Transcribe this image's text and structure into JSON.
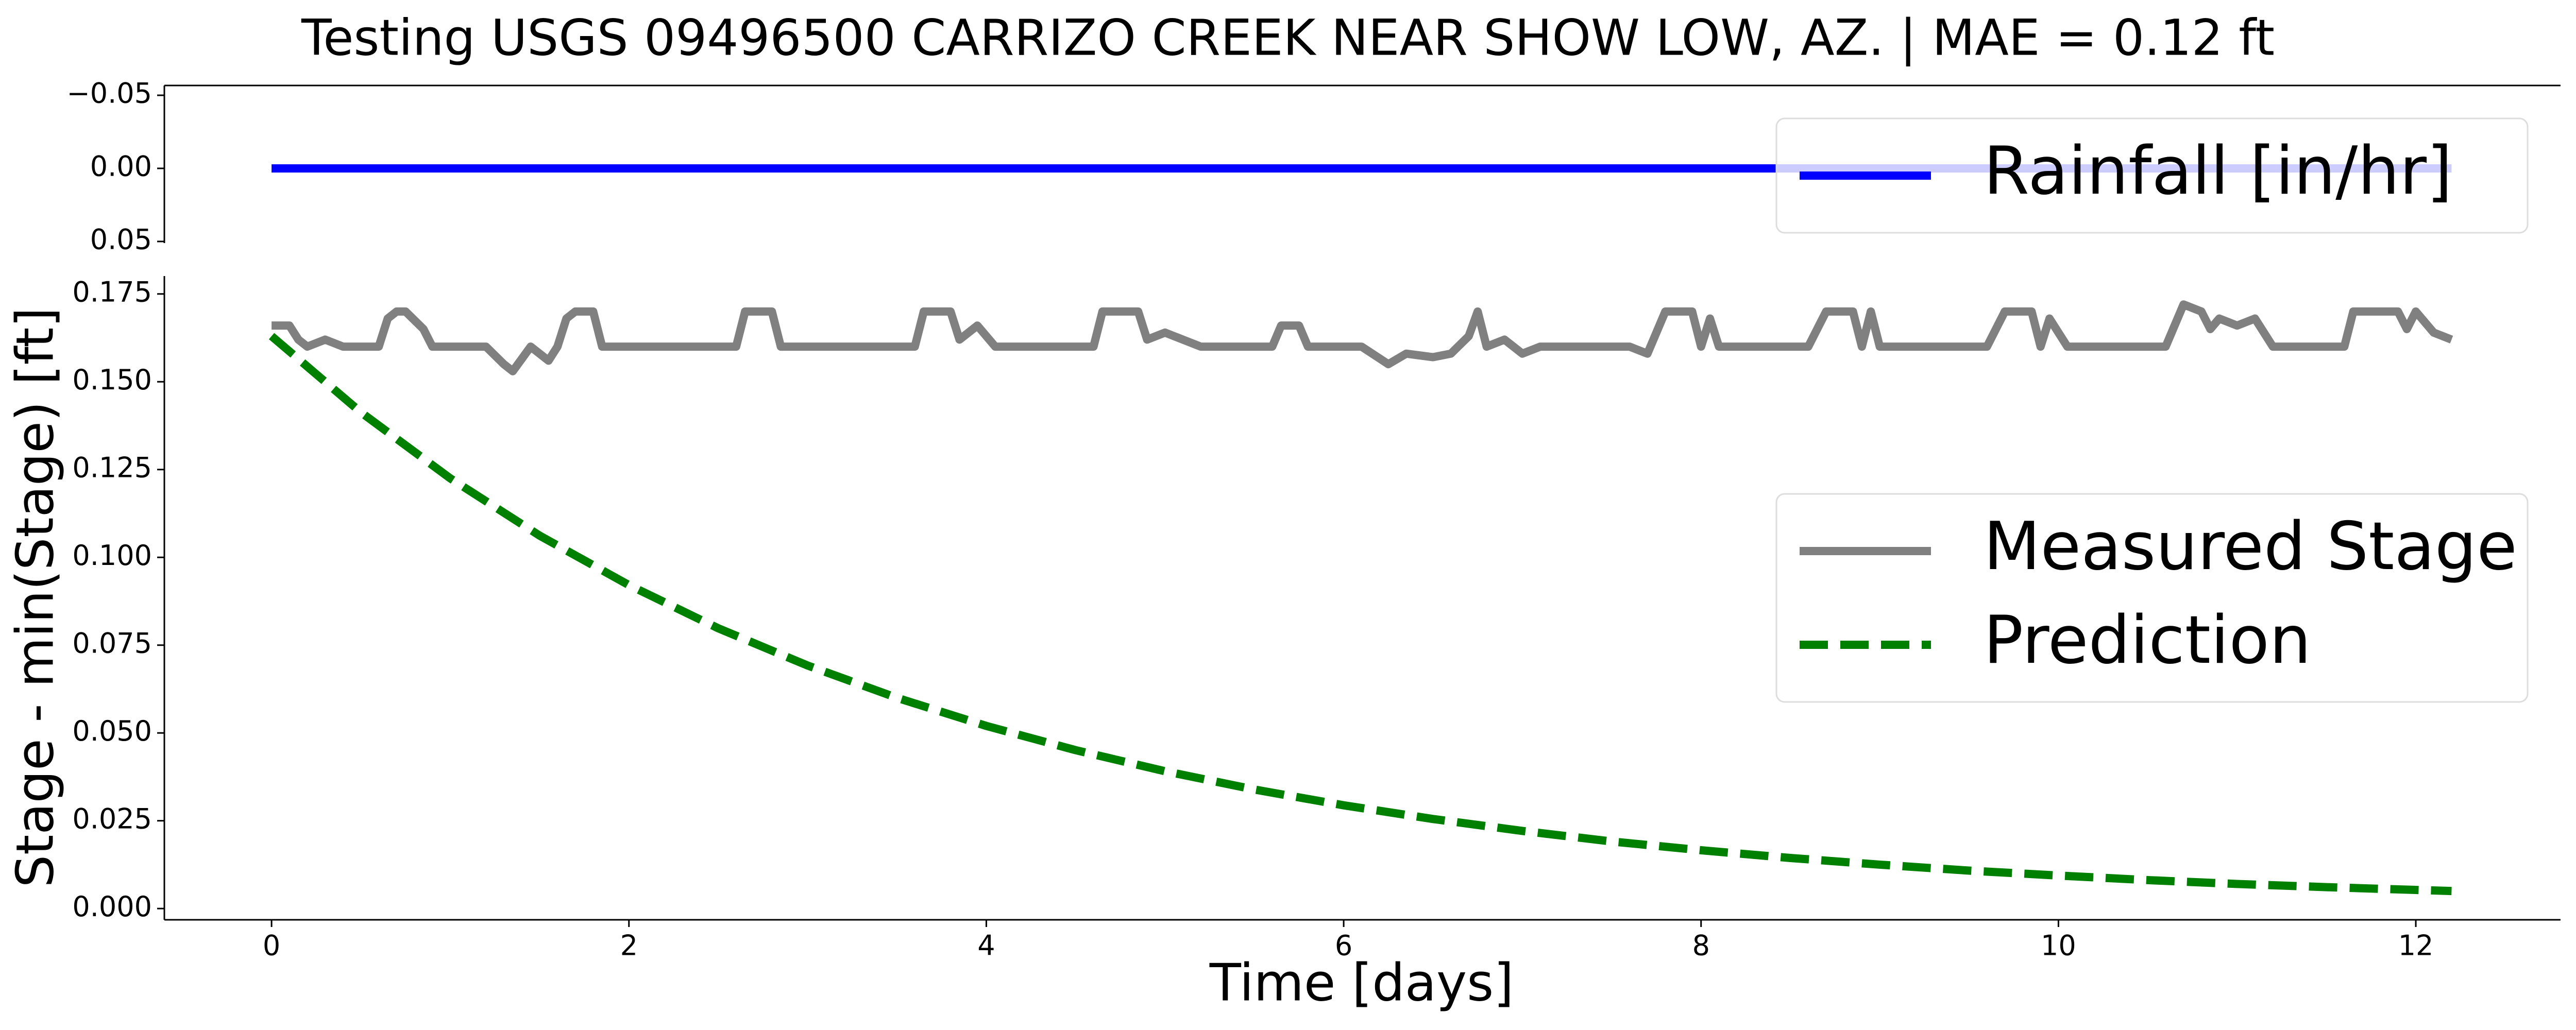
{
  "chart_data": [
    {
      "type": "line",
      "title": "Testing USGS 09496500 CARRIZO CREEK NEAR SHOW LOW, AZ. | MAE = 0.12 ft",
      "xlim": [
        -0.6,
        12.81
      ],
      "ylim": [
        0.0511,
        -0.0567
      ],
      "yticks": [
        {
          "value": -0.05,
          "label": "−0.05"
        },
        {
          "value": 0,
          "label": "0.00"
        },
        {
          "value": 0.05,
          "label": "0.05"
        }
      ],
      "legend": "upper right",
      "series": [
        {
          "name": "Rainfall [in/hr]",
          "color": "#0000ff",
          "linestyle": "solid",
          "x": [
            0,
            12.2
          ],
          "values": [
            0,
            0
          ]
        }
      ]
    },
    {
      "type": "line",
      "xlabel": "Time [days]",
      "ylabel": "Stage - min(Stage) [ft]",
      "xlim": [
        -0.6,
        12.81
      ],
      "xticks": [
        0,
        2,
        4,
        6,
        8,
        10,
        12
      ],
      "ylim": [
        -0.0032,
        0.1801
      ],
      "yticks": [
        {
          "value": 0,
          "label": "0.000"
        },
        {
          "value": 0.025,
          "label": "0.025"
        },
        {
          "value": 0.05,
          "label": "0.050"
        },
        {
          "value": 0.075,
          "label": "0.075"
        },
        {
          "value": 0.1,
          "label": "0.100"
        },
        {
          "value": 0.125,
          "label": "0.125"
        },
        {
          "value": 0.15,
          "label": "0.150"
        },
        {
          "value": 0.175,
          "label": "0.175"
        }
      ],
      "legend": "center right",
      "series": [
        {
          "name": "Measured Stage",
          "color": "#808080",
          "linestyle": "solid",
          "x": [
            0,
            0.1,
            0.15,
            0.2,
            0.3,
            0.4,
            0.6,
            0.65,
            0.7,
            0.75,
            0.85,
            0.9,
            1.2,
            1.3,
            1.35,
            1.45,
            1.55,
            1.6,
            1.65,
            1.7,
            1.8,
            1.85,
            2.6,
            2.65,
            2.8,
            2.85,
            3.6,
            3.65,
            3.8,
            3.85,
            3.95,
            4.05,
            4.6,
            4.65,
            4.85,
            4.9,
            5.0,
            5.1,
            5.2,
            5.6,
            5.65,
            5.75,
            5.8,
            6.1,
            6.25,
            6.35,
            6.5,
            6.6,
            6.7,
            6.75,
            6.8,
            6.9,
            7.0,
            7.1,
            7.6,
            7.7,
            7.8,
            7.95,
            8.0,
            8.05,
            8.1,
            8.6,
            8.7,
            8.85,
            8.9,
            8.95,
            9.0,
            9.6,
            9.7,
            9.85,
            9.9,
            9.95,
            10.05,
            10.6,
            10.7,
            10.8,
            10.85,
            10.9,
            11.0,
            11.1,
            11.2,
            11.6,
            11.65,
            11.9,
            11.95,
            12.0,
            12.1,
            12.2
          ],
          "values": [
            0.166,
            0.166,
            0.162,
            0.16,
            0.162,
            0.16,
            0.16,
            0.168,
            0.17,
            0.17,
            0.165,
            0.16,
            0.16,
            0.155,
            0.153,
            0.16,
            0.156,
            0.16,
            0.168,
            0.17,
            0.17,
            0.16,
            0.16,
            0.17,
            0.17,
            0.16,
            0.16,
            0.17,
            0.17,
            0.162,
            0.166,
            0.16,
            0.16,
            0.17,
            0.17,
            0.162,
            0.164,
            0.162,
            0.16,
            0.16,
            0.166,
            0.166,
            0.16,
            0.16,
            0.155,
            0.158,
            0.157,
            0.158,
            0.163,
            0.17,
            0.16,
            0.162,
            0.158,
            0.16,
            0.16,
            0.158,
            0.17,
            0.17,
            0.16,
            0.168,
            0.16,
            0.16,
            0.17,
            0.17,
            0.16,
            0.17,
            0.16,
            0.16,
            0.17,
            0.17,
            0.16,
            0.168,
            0.16,
            0.16,
            0.172,
            0.17,
            0.165,
            0.168,
            0.166,
            0.168,
            0.16,
            0.16,
            0.17,
            0.17,
            0.165,
            0.17,
            0.164,
            0.162
          ]
        },
        {
          "name": "Prediction",
          "color": "#008000",
          "linestyle": "dashed",
          "x": [
            0,
            0.5,
            1,
            1.5,
            2,
            2.5,
            3,
            3.5,
            4,
            4.5,
            5,
            5.5,
            6,
            6.5,
            7,
            7.5,
            8,
            8.5,
            9,
            9.5,
            10,
            10.5,
            11,
            11.5,
            12,
            12.2
          ],
          "values": [
            0.163,
            0.1413,
            0.1225,
            0.1062,
            0.0921,
            0.0798,
            0.0692,
            0.06,
            0.052,
            0.0451,
            0.0391,
            0.0339,
            0.0294,
            0.0255,
            0.0221,
            0.0191,
            0.0166,
            0.0144,
            0.0125,
            0.0108,
            0.0094,
            0.0081,
            0.007,
            0.0061,
            0.0053,
            0.005
          ]
        }
      ]
    }
  ]
}
